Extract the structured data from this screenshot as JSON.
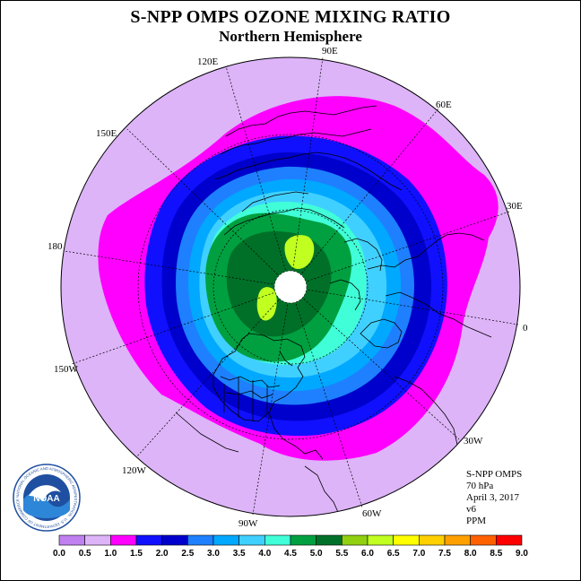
{
  "title": "S-NPP OMPS OZONE MIXING RATIO",
  "subtitle": "Northern Hemisphere",
  "longitude_labels": [
    "120E",
    "90E",
    "60E",
    "150E",
    "30E",
    "180",
    "0",
    "150W",
    "30W",
    "120W",
    "60W",
    "90W"
  ],
  "info": {
    "instrument": "S-NPP OMPS",
    "pressure": "70 hPa",
    "date": "April 3, 2017",
    "version": "v6",
    "units": "PPM"
  },
  "logo": {
    "text": "NOAA",
    "ring_text": "NATIONAL OCEANIC AND ATMOSPHERIC ADMINISTRATION · U.S. DEPARTMENT OF COMMERCE"
  },
  "colorbar": {
    "ticks": [
      "0.0",
      "0.5",
      "1.0",
      "1.5",
      "2.0",
      "2.5",
      "3.0",
      "3.5",
      "4.0",
      "4.5",
      "5.0",
      "5.5",
      "6.0",
      "6.5",
      "7.0",
      "7.5",
      "8.0",
      "8.5",
      "9.0"
    ],
    "colors": [
      "#c080f0",
      "#ddb4f8",
      "#ff00ff",
      "#1010ff",
      "#0000cc",
      "#1e80ff",
      "#00a8ff",
      "#40d0ff",
      "#40ffd8",
      "#00a040",
      "#007028",
      "#90d010",
      "#c0ff20",
      "#ffff00",
      "#ffd000",
      "#ffa000",
      "#ff6000",
      "#ff0000",
      "#a05030"
    ]
  },
  "map_levels": {
    "background": "#ddb4f8",
    "ring1": "#ff00ff",
    "ring2": "#1010ff",
    "ring3": "#0000cc",
    "ring4": "#1e80ff",
    "ring5": "#00a8ff",
    "ring6": "#40d0ff",
    "ring7": "#40ffd8",
    "ring8": "#00a040",
    "ring9": "#007028",
    "peak": "#c0ff20"
  }
}
